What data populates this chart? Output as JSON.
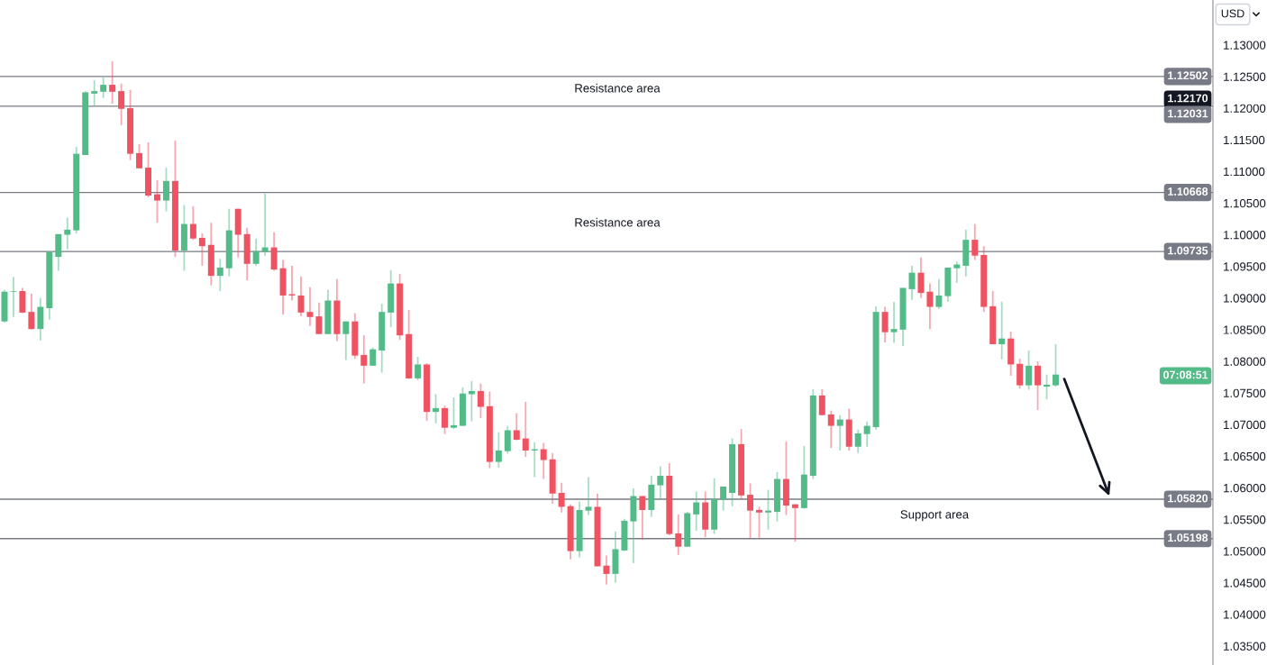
{
  "chart_data": {
    "type": "candlestick",
    "categories": [
      null,
      null,
      null,
      null,
      null,
      null,
      null,
      null,
      null,
      null,
      null,
      null,
      null,
      null,
      null,
      null,
      null,
      null,
      null,
      null,
      null,
      null,
      null,
      null,
      null,
      null,
      null,
      null,
      null,
      null,
      null,
      null,
      null,
      null,
      null,
      null,
      null,
      null,
      null,
      null,
      null,
      null,
      null,
      null,
      null,
      null,
      null,
      null,
      null,
      null,
      null,
      null,
      null,
      null,
      null,
      null,
      null,
      null,
      null,
      null,
      null,
      null,
      null,
      null,
      null,
      null,
      null,
      null,
      null,
      null,
      null,
      null,
      null,
      null,
      null,
      null,
      null,
      null,
      null,
      null,
      null,
      null,
      null,
      null,
      null,
      null,
      null,
      null,
      null,
      null,
      null,
      null,
      null,
      null,
      null,
      null,
      null,
      null,
      null,
      null,
      null,
      null,
      null,
      null,
      null,
      null,
      null,
      null,
      null,
      null,
      null,
      null,
      null,
      null,
      null,
      null,
      null,
      null,
      null,
      null,
      null,
      null,
      null,
      null,
      null,
      null,
      null,
      null,
      null,
      null,
      null,
      null,
      null,
      null,
      null
    ],
    "ohlc": [
      [
        1.0863,
        1.0913,
        1.0861,
        1.091
      ],
      [
        1.091,
        1.0933,
        1.087,
        1.0911
      ],
      [
        1.0911,
        1.0916,
        1.0876,
        1.0877
      ],
      [
        1.0878,
        1.0907,
        1.085,
        1.0851
      ],
      [
        1.0851,
        1.09,
        1.0833,
        1.0886
      ],
      [
        1.0884,
        1.0973,
        1.0866,
        1.0973
      ],
      [
        1.0965,
        1.1001,
        1.0943,
        1.1001
      ],
      [
        1.1,
        1.1027,
        1.0977,
        1.1008
      ],
      [
        1.1007,
        1.1139,
        1.1002,
        1.1128
      ],
      [
        1.1126,
        1.1227,
        1.1126,
        1.1225
      ],
      [
        1.1223,
        1.1244,
        1.1203,
        1.1227
      ],
      [
        1.1226,
        1.1249,
        1.1216,
        1.1237
      ],
      [
        1.1237,
        1.1274,
        1.1207,
        1.1226
      ],
      [
        1.1227,
        1.1239,
        1.1173,
        1.1199
      ],
      [
        1.12,
        1.1229,
        1.1118,
        1.1128
      ],
      [
        1.1129,
        1.1143,
        1.1105,
        1.1105
      ],
      [
        1.1106,
        1.1146,
        1.1059,
        1.1062
      ],
      [
        1.1064,
        1.1086,
        1.1019,
        1.1054
      ],
      [
        1.1054,
        1.1106,
        1.1037,
        1.1085
      ],
      [
        1.1085,
        1.1149,
        1.0965,
        1.0975
      ],
      [
        1.0975,
        1.1047,
        1.0943,
        1.1017
      ],
      [
        1.1017,
        1.1045,
        1.0992,
        1.0994
      ],
      [
        1.0995,
        1.1002,
        1.0951,
        1.0982
      ],
      [
        1.0984,
        1.1019,
        1.092,
        1.0935
      ],
      [
        1.0935,
        1.0962,
        1.0911,
        1.0948
      ],
      [
        1.0947,
        1.1041,
        1.0934,
        1.1007
      ],
      [
        1.1041,
        1.1041,
        1.0964,
        1.1
      ],
      [
        1.1001,
        1.1011,
        1.0928,
        1.0954
      ],
      [
        1.0954,
        1.0994,
        1.0951,
        1.0974
      ],
      [
        1.0973,
        1.1065,
        1.0967,
        1.098
      ],
      [
        1.098,
        1.1004,
        1.0943,
        1.0945
      ],
      [
        1.0947,
        1.096,
        1.0874,
        1.0904
      ],
      [
        1.0906,
        1.0951,
        1.0896,
        1.0904
      ],
      [
        1.0904,
        1.0934,
        1.0871,
        1.0877
      ],
      [
        1.0878,
        1.0917,
        1.0856,
        1.087
      ],
      [
        1.0871,
        1.0893,
        1.0843,
        1.0843
      ],
      [
        1.0843,
        1.0913,
        1.0843,
        1.0896
      ],
      [
        1.0896,
        1.093,
        1.0832,
        1.0843
      ],
      [
        1.0843,
        1.0863,
        1.0802,
        1.0863
      ],
      [
        1.0863,
        1.0876,
        1.0804,
        1.0809
      ],
      [
        1.081,
        1.0841,
        1.0765,
        1.0793
      ],
      [
        1.0793,
        1.0822,
        1.0793,
        1.0819
      ],
      [
        1.0817,
        1.0891,
        1.0782,
        1.0878
      ],
      [
        1.0877,
        1.0944,
        1.0854,
        1.0923
      ],
      [
        1.0923,
        1.0938,
        1.0834,
        1.0841
      ],
      [
        1.0843,
        1.0881,
        1.0772,
        1.0773
      ],
      [
        1.0773,
        1.0807,
        1.077,
        1.0795
      ],
      [
        1.0795,
        1.0797,
        1.0706,
        1.072
      ],
      [
        1.072,
        1.0748,
        1.0702,
        1.0726
      ],
      [
        1.0726,
        1.073,
        1.0685,
        1.0695
      ],
      [
        1.0695,
        1.0743,
        1.0693,
        1.0699
      ],
      [
        1.0698,
        1.0759,
        1.0698,
        1.0749
      ],
      [
        1.0748,
        1.0769,
        1.0705,
        1.0753
      ],
      [
        1.0753,
        1.0765,
        1.071,
        1.0728
      ],
      [
        1.0729,
        1.0752,
        1.0631,
        1.0641
      ],
      [
        1.0641,
        1.0688,
        1.0632,
        1.0659
      ],
      [
        1.0658,
        1.0698,
        1.0654,
        1.0691
      ],
      [
        1.0691,
        1.0718,
        1.0675,
        1.0676
      ],
      [
        1.0678,
        1.0736,
        1.0649,
        1.0659
      ],
      [
        1.0659,
        1.0672,
        1.0617,
        1.0661
      ],
      [
        1.0661,
        1.0671,
        1.0614,
        1.0644
      ],
      [
        1.0645,
        1.0655,
        1.0575,
        1.0591
      ],
      [
        1.0592,
        1.0608,
        1.0561,
        1.057
      ],
      [
        1.0571,
        1.0574,
        1.0487,
        1.05
      ],
      [
        1.05,
        1.0578,
        1.049,
        1.0565
      ],
      [
        1.0564,
        1.0617,
        1.0557,
        1.057
      ],
      [
        1.057,
        1.0591,
        1.0476,
        1.0476
      ],
      [
        1.0477,
        1.0493,
        1.0447,
        1.0464
      ],
      [
        1.0464,
        1.0531,
        1.045,
        1.0503
      ],
      [
        1.0501,
        1.0551,
        1.05,
        1.0548
      ],
      [
        1.0547,
        1.0599,
        1.0481,
        1.0587
      ],
      [
        1.0587,
        1.0587,
        1.0518,
        1.0565
      ],
      [
        1.0565,
        1.0619,
        1.0554,
        1.0605
      ],
      [
        1.0604,
        1.0634,
        1.0581,
        1.0619
      ],
      [
        1.0619,
        1.0639,
        1.0525,
        1.0527
      ],
      [
        1.0528,
        1.0558,
        1.0494,
        1.0507
      ],
      [
        1.0507,
        1.0562,
        1.0507,
        1.056
      ],
      [
        1.0558,
        1.0594,
        1.0532,
        1.0577
      ],
      [
        1.0577,
        1.0594,
        1.0522,
        1.0534
      ],
      [
        1.0534,
        1.0615,
        1.0527,
        1.0582
      ],
      [
        1.0581,
        1.0602,
        1.0564,
        1.0602
      ],
      [
        1.0592,
        1.0678,
        1.0571,
        1.0669
      ],
      [
        1.0669,
        1.0693,
        1.0582,
        1.0588
      ],
      [
        1.0589,
        1.0607,
        1.0521,
        1.0564
      ],
      [
        1.0565,
        1.057,
        1.0521,
        1.0561
      ],
      [
        1.0561,
        1.0597,
        1.0534,
        1.0564
      ],
      [
        1.0562,
        1.0625,
        1.0547,
        1.0614
      ],
      [
        1.0614,
        1.0673,
        1.0557,
        1.0572
      ],
      [
        1.0574,
        1.0574,
        1.0515,
        1.0568
      ],
      [
        1.0568,
        1.0666,
        1.0567,
        1.0621
      ],
      [
        1.0619,
        1.0756,
        1.0614,
        1.0746
      ],
      [
        1.0746,
        1.0756,
        1.0715,
        1.0715
      ],
      [
        1.0716,
        1.0722,
        1.0663,
        1.0698
      ],
      [
        1.0698,
        1.0715,
        1.0659,
        1.0708
      ],
      [
        1.0708,
        1.0725,
        1.0659,
        1.0665
      ],
      [
        1.0665,
        1.0692,
        1.0655,
        1.0686
      ],
      [
        1.0685,
        1.0705,
        1.0665,
        1.0698
      ],
      [
        1.0696,
        1.0887,
        1.0692,
        1.0878
      ],
      [
        1.0878,
        1.0886,
        1.083,
        1.0846
      ],
      [
        1.0846,
        1.0894,
        1.0829,
        1.0851
      ],
      [
        1.085,
        1.0916,
        1.0824,
        1.0916
      ],
      [
        1.0914,
        1.0951,
        1.0897,
        1.094
      ],
      [
        1.094,
        1.0964,
        1.09,
        1.0908
      ],
      [
        1.091,
        1.0923,
        1.0851,
        1.0886
      ],
      [
        1.0886,
        1.093,
        1.0883,
        1.0904
      ],
      [
        1.0903,
        1.0948,
        1.0894,
        1.0948
      ],
      [
        1.0947,
        1.0958,
        1.0924,
        1.0953
      ],
      [
        1.0951,
        1.1008,
        1.0934,
        1.0992
      ],
      [
        1.0992,
        1.1017,
        1.096,
        1.0967
      ],
      [
        1.0968,
        1.0982,
        1.0878,
        1.0886
      ],
      [
        1.0887,
        1.0911,
        1.0827,
        1.0827
      ],
      [
        1.0827,
        1.0894,
        1.0803,
        1.0836
      ],
      [
        1.0836,
        1.0847,
        1.0777,
        1.0795
      ],
      [
        1.0796,
        1.0804,
        1.0757,
        1.0762
      ],
      [
        1.0762,
        1.0817,
        1.0755,
        1.0793
      ],
      [
        1.0793,
        1.08,
        1.0723,
        1.0762
      ],
      [
        1.076,
        1.0779,
        1.074,
        1.0763
      ],
      [
        1.0762,
        1.0827,
        1.076,
        1.0779
      ],
      null,
      null,
      null,
      null,
      null,
      null,
      null,
      null,
      null,
      null,
      null,
      null,
      null,
      null,
      null,
      null,
      null
    ],
    "colors": [
      "#52bb88",
      "#52bb88",
      "#ef5261",
      "#ef5261",
      "#52bb88",
      "#52bb88",
      "#52bb88",
      "#52bb88",
      "#52bb88",
      "#52bb88",
      "#52bb88",
      "#52bb88",
      "#ef5261",
      "#ef5261",
      "#ef5261",
      "#ef5261",
      "#ef5261",
      "#ef5261",
      "#52bb88",
      "#ef5261",
      "#52bb88",
      "#ef5261",
      "#ef5261",
      "#ef5261",
      "#52bb88",
      "#52bb88",
      "#ef5261",
      "#ef5261",
      "#52bb88",
      "#52bb88",
      "#ef5261",
      "#ef5261",
      "#ef5261",
      "#ef5261",
      "#ef5261",
      "#ef5261",
      "#52bb88",
      "#ef5261",
      "#52bb88",
      "#ef5261",
      "#ef5261",
      "#52bb88",
      "#52bb88",
      "#52bb88",
      "#ef5261",
      "#ef5261",
      "#52bb88",
      "#ef5261",
      "#52bb88",
      "#ef5261",
      "#52bb88",
      "#52bb88",
      "#52bb88",
      "#ef5261",
      "#ef5261",
      "#52bb88",
      "#52bb88",
      "#ef5261",
      "#ef5261",
      "#52bb88",
      "#ef5261",
      "#ef5261",
      "#ef5261",
      "#ef5261",
      "#52bb88",
      "#52bb88",
      "#ef5261",
      "#ef5261",
      "#52bb88",
      "#52bb88",
      "#52bb88",
      "#ef5261",
      "#52bb88",
      "#52bb88",
      "#ef5261",
      "#ef5261",
      "#52bb88",
      "#52bb88",
      "#ef5261",
      "#52bb88",
      "#52bb88",
      "#52bb88",
      "#ef5261",
      "#ef5261",
      "#ef5261",
      "#52bb88",
      "#52bb88",
      "#ef5261",
      "#ef5261",
      "#52bb88",
      "#52bb88",
      "#ef5261",
      "#ef5261",
      "#52bb88",
      "#ef5261",
      "#52bb88",
      "#52bb88",
      "#52bb88",
      "#ef5261",
      "#52bb88",
      "#52bb88",
      "#52bb88",
      "#ef5261",
      "#ef5261",
      "#52bb88",
      "#52bb88",
      "#52bb88",
      "#52bb88",
      "#ef5261",
      "#ef5261",
      "#ef5261",
      "#52bb88",
      "#ef5261",
      "#ef5261",
      "#52bb88",
      "#ef5261",
      "#52bb88",
      "#52bb88",
      null,
      null,
      null,
      null,
      null,
      null,
      null,
      null,
      null,
      null,
      null,
      null,
      null,
      null,
      null,
      null,
      null
    ],
    "ylim": [
      1.032,
      1.1371
    ],
    "yticks": [
      {
        "value": 1.035,
        "label": "1.03500"
      },
      {
        "value": 1.04,
        "label": "1.04000"
      },
      {
        "value": 1.045,
        "label": "1.04500"
      },
      {
        "value": 1.05,
        "label": "1.05000"
      },
      {
        "value": 1.055,
        "label": "1.05500"
      },
      {
        "value": 1.06,
        "label": "1.06000"
      },
      {
        "value": 1.065,
        "label": "1.06500"
      },
      {
        "value": 1.07,
        "label": "1.07000"
      },
      {
        "value": 1.075,
        "label": "1.07500"
      },
      {
        "value": 1.08,
        "label": "1.08000"
      },
      {
        "value": 1.085,
        "label": "1.08500"
      },
      {
        "value": 1.09,
        "label": "1.09000"
      },
      {
        "value": 1.095,
        "label": "1.09500"
      },
      {
        "value": 1.1,
        "label": "1.10000"
      },
      {
        "value": 1.105,
        "label": "1.10500"
      },
      {
        "value": 1.11,
        "label": "1.11000"
      },
      {
        "value": 1.115,
        "label": "1.11500"
      },
      {
        "value": 1.12,
        "label": "1.12000"
      },
      {
        "value": 1.125,
        "label": "1.12500"
      },
      {
        "value": 1.13,
        "label": "1.13000"
      }
    ],
    "tick_labels": "y",
    "grid": false,
    "ref_lines": [
      {
        "axis": "y",
        "value": 1.12502,
        "label": "1.12502",
        "color": "#787b86"
      },
      {
        "axis": "y",
        "value": 1.12031,
        "label": "1.12031",
        "color": "#787b86"
      },
      {
        "axis": "y",
        "value": 1.10668,
        "label": "1.10668",
        "color": "#787b86"
      },
      {
        "axis": "y",
        "value": 1.09735,
        "label": "1.09735",
        "color": "#787b86"
      },
      {
        "axis": "y",
        "value": 1.0582,
        "label": "1.05820",
        "color": "#787b86"
      },
      {
        "axis": "y",
        "value": 1.05198,
        "label": "1.05198",
        "color": "#787b86"
      }
    ],
    "annotations": [
      "Resistance area",
      "Resistance area",
      "Support area",
      "USD",
      "1.12170",
      "07:08:51"
    ]
  }
}
